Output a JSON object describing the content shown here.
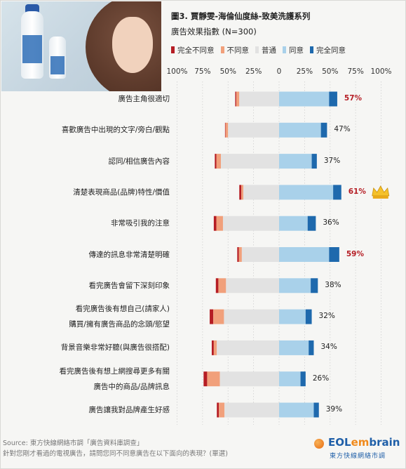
{
  "header": {
    "title": "圖3. 賈靜雯-海倫仙度絲-致美洗護系列",
    "subtitle": "廣告效果指數 (N=300)"
  },
  "legend": [
    {
      "label": "完全不同意",
      "color": "#b51d24"
    },
    {
      "label": "不同意",
      "color": "#f1a07b"
    },
    {
      "label": "普通",
      "color": "#e2e2e2"
    },
    {
      "label": "同意",
      "color": "#a9d1ea"
    },
    {
      "label": "完全同意",
      "color": "#1e69ad"
    }
  ],
  "axis_ticks": [
    "100%",
    "75%",
    "50%",
    "25%",
    "0",
    "25%",
    "50%",
    "75%",
    "100%"
  ],
  "chart_data": {
    "type": "bar",
    "subtype": "diverging-stacked",
    "title": "圖3. 賈靜雯-海倫仙度絲-致美洗護系列",
    "subtitle": "廣告效果指數 (N=300)",
    "xlim": [
      -100,
      100
    ],
    "series_names": [
      "完全不同意",
      "不同意",
      "普通",
      "同意",
      "完全同意"
    ],
    "categories": [
      [
        "廣告主角很適切"
      ],
      [
        "喜歡廣告中出現的文字/旁白/觀點"
      ],
      [
        "認同/相信廣告內容"
      ],
      [
        "清楚表現商品(品牌)特性/價值"
      ],
      [
        "非常吸引我的注意"
      ],
      [
        "傳達的訊息非常清楚明確"
      ],
      [
        "看完廣告會留下深刻印象"
      ],
      [
        "看完廣告後有想自己(請家人)",
        "購買/擁有廣告商品的念頭/慾望"
      ],
      [
        "背景音樂非常好聽(與廣告很搭配)"
      ],
      [
        "看完廣告後有想上網搜尋更多有關",
        "廣告中的商品/品牌訊息"
      ],
      [
        "廣告讓我對品牌產生好感"
      ]
    ],
    "rows": [
      {
        "strongly_disagree": 1,
        "disagree": 3,
        "neutral": 39,
        "agree": 49,
        "strongly_agree": 8,
        "agree_total_label": "57%",
        "highlight": true
      },
      {
        "strongly_disagree": 0.5,
        "disagree": 2.5,
        "neutral": 50,
        "agree": 41,
        "strongly_agree": 6,
        "agree_total_label": "47%",
        "highlight": false
      },
      {
        "strongly_disagree": 1.5,
        "disagree": 4.5,
        "neutral": 57,
        "agree": 32,
        "strongly_agree": 5,
        "agree_total_label": "37%",
        "highlight": false
      },
      {
        "strongly_disagree": 2,
        "disagree": 2,
        "neutral": 35,
        "agree": 53,
        "strongly_agree": 8,
        "agree_total_label": "61%",
        "highlight": true,
        "crown": true
      },
      {
        "strongly_disagree": 2.5,
        "disagree": 6.5,
        "neutral": 55,
        "agree": 28,
        "strongly_agree": 8,
        "agree_total_label": "36%",
        "highlight": false
      },
      {
        "strongly_disagree": 1.5,
        "disagree": 3,
        "neutral": 36.5,
        "agree": 49,
        "strongly_agree": 10,
        "agree_total_label": "59%",
        "highlight": true
      },
      {
        "strongly_disagree": 2.5,
        "disagree": 7.5,
        "neutral": 52,
        "agree": 31,
        "strongly_agree": 7,
        "agree_total_label": "38%",
        "highlight": false
      },
      {
        "strongly_disagree": 3.5,
        "disagree": 10.5,
        "neutral": 54,
        "agree": 26,
        "strongly_agree": 6,
        "agree_total_label": "32%",
        "highlight": false
      },
      {
        "strongly_disagree": 2,
        "disagree": 3,
        "neutral": 61,
        "agree": 29,
        "strongly_agree": 5,
        "agree_total_label": "34%",
        "highlight": false
      },
      {
        "strongly_disagree": 3.5,
        "disagree": 12.5,
        "neutral": 58,
        "agree": 21,
        "strongly_agree": 5,
        "agree_total_label": "26%",
        "highlight": false
      },
      {
        "strongly_disagree": 2,
        "disagree": 5.5,
        "neutral": 53.5,
        "agree": 34,
        "strongly_agree": 5,
        "agree_total_label": "39%",
        "highlight": false
      }
    ]
  },
  "footer": {
    "source": "Source: 東方快線網絡市調「廣告資料庫調查」",
    "question": "針對您剛才看過的電視廣告，請問您同不同意廣告在以下面向的表現？(單選)"
  },
  "logo": {
    "brand_prefix": "EOL",
    "brand_em": "em",
    "brand_suffix": "brain",
    "tagline": "東方快線網絡市調"
  }
}
